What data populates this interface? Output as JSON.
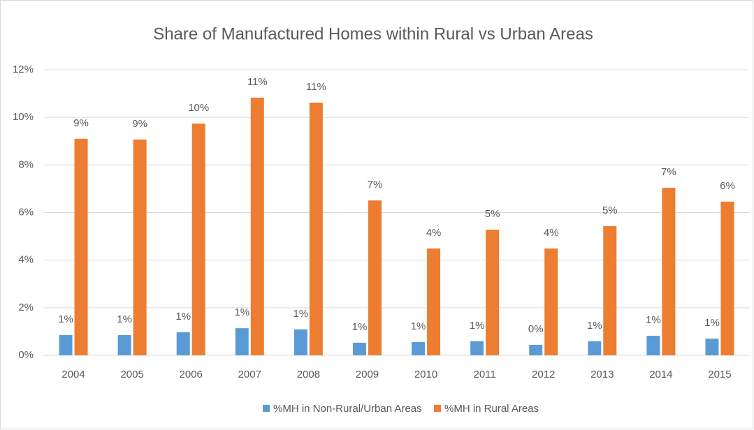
{
  "chart_data": {
    "type": "bar",
    "title": "Share of Manufactured Homes within Rural vs Urban Areas",
    "categories": [
      "2004",
      "2005",
      "2006",
      "2007",
      "2008",
      "2009",
      "2010",
      "2011",
      "2012",
      "2013",
      "2014",
      "2015"
    ],
    "series": [
      {
        "name": "%MH in Non-Rural/Urban Areas",
        "color": "#5b9bd5",
        "values": [
          0.85,
          0.85,
          0.97,
          1.14,
          1.09,
          0.53,
          0.56,
          0.59,
          0.44,
          0.59,
          0.82,
          0.7
        ],
        "value_labels": [
          "1%",
          "1%",
          "1%",
          "1%",
          "1%",
          "1%",
          "1%",
          "1%",
          "0%",
          "1%",
          "1%",
          "1%"
        ]
      },
      {
        "name": "%MH in Rural Areas",
        "color": "#ed7d31",
        "values": [
          9.1,
          9.07,
          9.74,
          10.83,
          10.62,
          6.51,
          4.49,
          5.28,
          4.49,
          5.43,
          7.04,
          6.46
        ],
        "value_labels": [
          "9%",
          "9%",
          "10%",
          "11%",
          "11%",
          "7%",
          "4%",
          "5%",
          "4%",
          "5%",
          "7%",
          "6%"
        ]
      }
    ],
    "ylim": [
      0,
      12
    ],
    "yticks": [
      {
        "value": 0,
        "label": "0%"
      },
      {
        "value": 2,
        "label": "2%"
      },
      {
        "value": 4,
        "label": "4%"
      },
      {
        "value": 6,
        "label": "6%"
      },
      {
        "value": 8,
        "label": "8%"
      },
      {
        "value": 10,
        "label": "10%"
      },
      {
        "value": 12,
        "label": "12%"
      }
    ],
    "grid": true,
    "legend": "bottom"
  }
}
